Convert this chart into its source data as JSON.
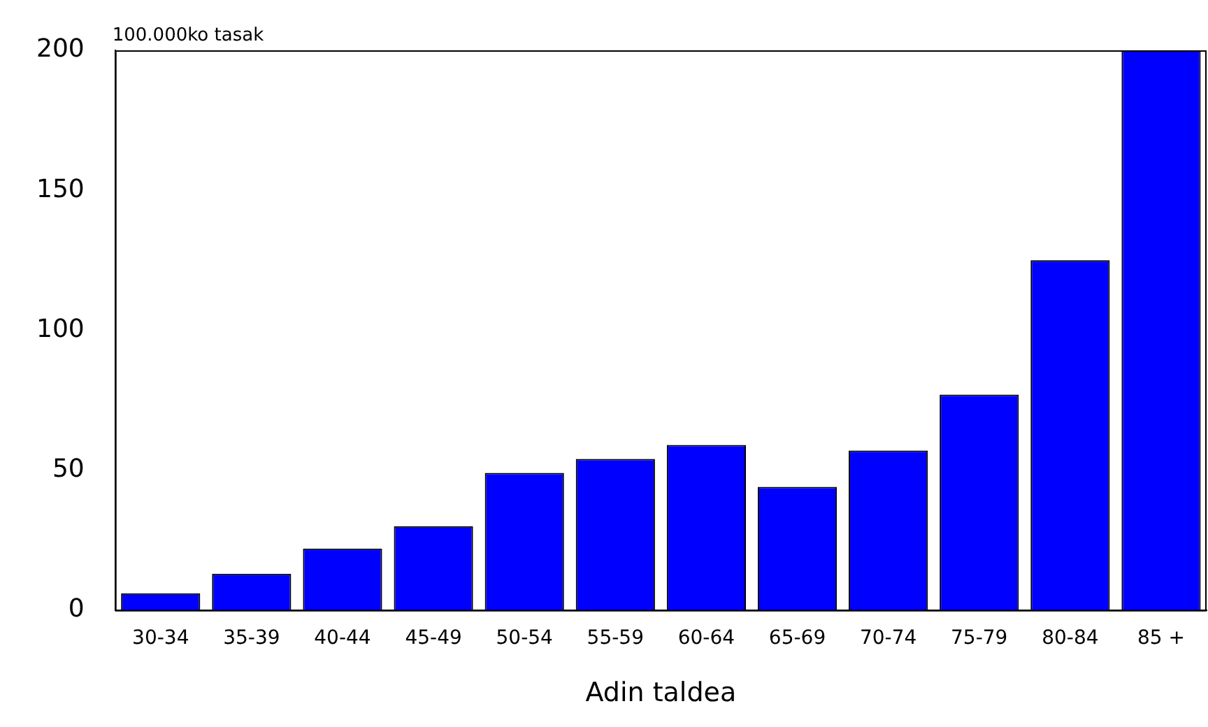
{
  "chart_data": {
    "type": "bar",
    "ylabel": "100.000ko tasak",
    "xlabel": "Adin taldea",
    "categories": [
      "30-34",
      "35-39",
      "40-44",
      "45-49",
      "50-54",
      "55-59",
      "60-64",
      "65-69",
      "70-74",
      "75-79",
      "80-84",
      "85 +"
    ],
    "values": [
      6,
      13,
      22,
      30,
      49,
      54,
      59,
      44,
      57,
      77,
      125,
      200
    ],
    "color": "#0000ff",
    "ylim": [
      0,
      200
    ],
    "yticks": [
      0,
      50,
      100,
      150,
      200
    ],
    "grid": false,
    "legend": false
  }
}
